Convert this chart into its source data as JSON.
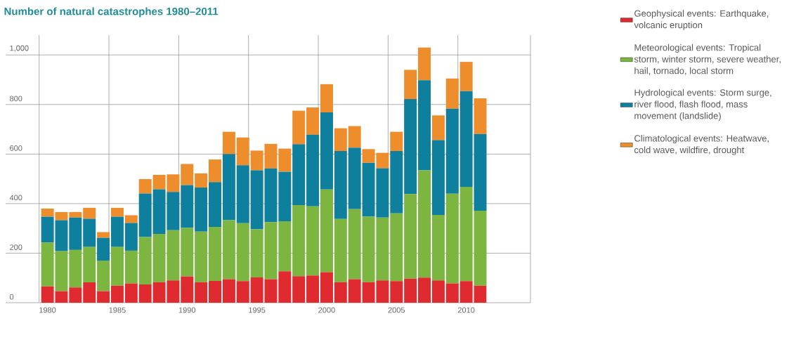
{
  "chart_data": {
    "type": "bar",
    "stacked": true,
    "title": "Number of natural catastrophes 1980–2011",
    "categories": [
      "1980",
      null,
      null,
      null,
      null,
      "1985",
      null,
      null,
      null,
      null,
      "1990",
      null,
      null,
      null,
      null,
      "1995",
      null,
      null,
      null,
      null,
      "2000",
      null,
      null,
      null,
      null,
      "2005",
      null,
      null,
      null,
      null,
      "2010",
      null
    ],
    "series": [
      {
        "name": "Geophysical events: Earthquake, volcanic eruption",
        "color": "#df2b2f",
        "values": [
          66,
          47,
          62,
          82,
          47,
          69,
          78,
          74,
          83,
          90,
          106,
          83,
          88,
          95,
          87,
          102,
          95,
          127,
          107,
          110,
          123,
          83,
          95,
          83,
          90,
          87,
          97,
          101,
          90,
          78,
          87,
          69
        ]
      },
      {
        "name": "Meteorological events: Tropical storm, winter storm, severe weather, hail, tornado, local storm",
        "color": "#7cb53f",
        "values": [
          177,
          161,
          151,
          143,
          123,
          156,
          132,
          191,
          195,
          203,
          196,
          204,
          218,
          238,
          234,
          194,
          230,
          202,
          287,
          279,
          334,
          255,
          283,
          264,
          254,
          274,
          342,
          433,
          264,
          362,
          381,
          302
        ]
      },
      {
        "name": "Hydrological events: Storm surge, river flood, flash flood, mass movement (landslide)",
        "color": "#0f7f9e",
        "values": [
          104,
          125,
          131,
          114,
          92,
          122,
          112,
          176,
          180,
          154,
          173,
          178,
          181,
          267,
          234,
          238,
          217,
          200,
          246,
          289,
          311,
          274,
          248,
          218,
          199,
          251,
          383,
          364,
          302,
          343,
          386,
          310
        ]
      },
      {
        "name": "Climatological events: Heatwave, cold wave, wildfire, drought",
        "color": "#ee8d2b",
        "values": [
          33,
          33,
          22,
          44,
          23,
          36,
          31,
          58,
          58,
          71,
          85,
          57,
          91,
          90,
          112,
          80,
          99,
          93,
          135,
          110,
          114,
          92,
          87,
          55,
          62,
          78,
          118,
          132,
          100,
          122,
          118,
          144
        ]
      }
    ],
    "ylim": [
      0,
      1080
    ],
    "yticks": [
      0,
      200,
      400,
      600,
      800,
      {
        "value": 1000,
        "label": "1,000"
      }
    ],
    "grid": true,
    "legend": "right"
  }
}
